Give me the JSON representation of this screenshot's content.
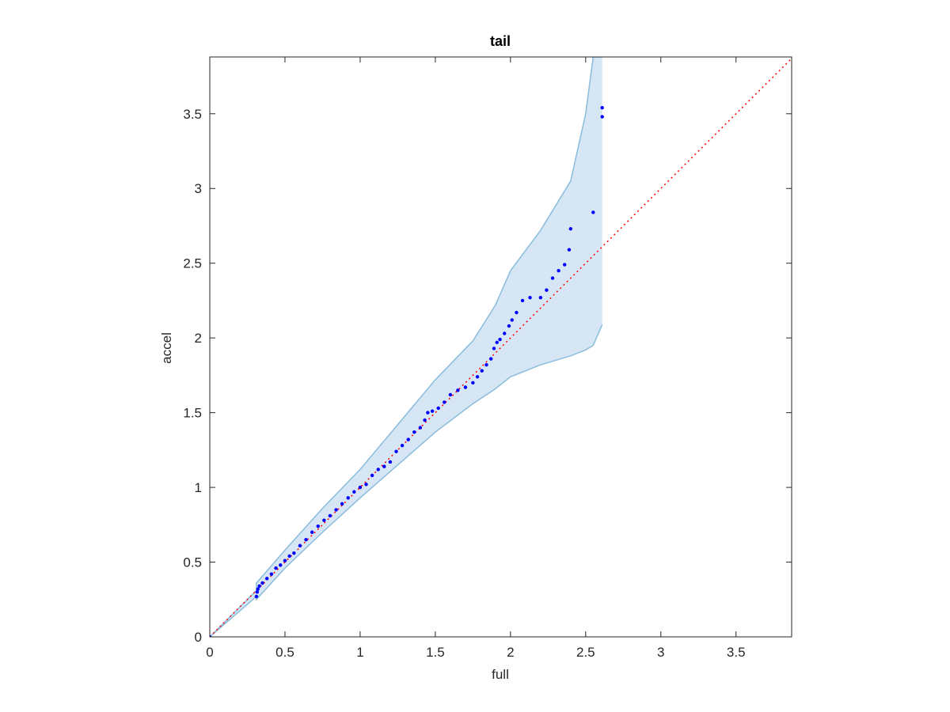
{
  "chart_data": {
    "type": "scatter",
    "title": "tail",
    "x_label": "full",
    "y_label": "accel",
    "xlim": [
      0,
      3.87
    ],
    "ylim": [
      0,
      3.88
    ],
    "xticks": [
      0,
      0.5,
      1,
      1.5,
      2,
      2.5,
      3,
      3.5
    ],
    "yticks": [
      0,
      0.5,
      1,
      1.5,
      2,
      2.5,
      3,
      3.5
    ],
    "points": {
      "color": "#0000ff",
      "x": [
        0,
        0.31,
        0.315,
        0.32,
        0.33,
        0.35,
        0.38,
        0.41,
        0.44,
        0.47,
        0.5,
        0.53,
        0.56,
        0.6,
        0.64,
        0.68,
        0.72,
        0.76,
        0.8,
        0.84,
        0.88,
        0.92,
        0.96,
        1.0,
        1.04,
        1.08,
        1.12,
        1.16,
        1.2,
        1.24,
        1.28,
        1.32,
        1.36,
        1.4,
        1.43,
        1.45,
        1.48,
        1.52,
        1.56,
        1.6,
        1.65,
        1.7,
        1.75,
        1.78,
        1.81,
        1.84,
        1.87,
        1.89,
        1.91,
        1.93,
        1.96,
        1.99,
        2.01,
        2.04,
        2.08,
        2.13,
        2.2,
        2.24,
        2.28,
        2.32,
        2.36,
        2.39,
        2.4,
        2.55,
        2.61,
        2.61
      ],
      "y": [
        0,
        0.27,
        0.3,
        0.32,
        0.34,
        0.36,
        0.39,
        0.42,
        0.46,
        0.48,
        0.51,
        0.54,
        0.56,
        0.61,
        0.65,
        0.7,
        0.74,
        0.78,
        0.81,
        0.85,
        0.89,
        0.93,
        0.97,
        1.0,
        1.02,
        1.08,
        1.12,
        1.14,
        1.17,
        1.24,
        1.28,
        1.32,
        1.37,
        1.4,
        1.45,
        1.5,
        1.51,
        1.53,
        1.57,
        1.62,
        1.65,
        1.67,
        1.7,
        1.74,
        1.78,
        1.82,
        1.86,
        1.93,
        1.97,
        1.99,
        2.03,
        2.08,
        2.12,
        2.17,
        2.25,
        2.27,
        2.27,
        2.32,
        2.4,
        2.45,
        2.49,
        2.59,
        2.73,
        2.84,
        3.48,
        3.54
      ]
    },
    "band": {
      "color": "#d6e6f4",
      "edge_color": "#8abcdc",
      "x": [
        0,
        0.31,
        0.31,
        0.5,
        0.75,
        1.0,
        1.25,
        1.5,
        1.75,
        1.9,
        2.0,
        2.2,
        2.4,
        2.5,
        2.55,
        2.61
      ],
      "upper": [
        0,
        0.31,
        0.36,
        0.58,
        0.86,
        1.12,
        1.42,
        1.72,
        1.98,
        2.22,
        2.45,
        2.72,
        3.05,
        3.5,
        3.88,
        3.88
      ],
      "lower": [
        0,
        0.27,
        0.25,
        0.46,
        0.7,
        0.93,
        1.15,
        1.37,
        1.56,
        1.66,
        1.74,
        1.82,
        1.88,
        1.92,
        1.95,
        2.09
      ]
    },
    "reference_line": {
      "color": "#ff0000",
      "x": [
        0,
        3.87
      ],
      "y": [
        0,
        3.87
      ]
    }
  }
}
